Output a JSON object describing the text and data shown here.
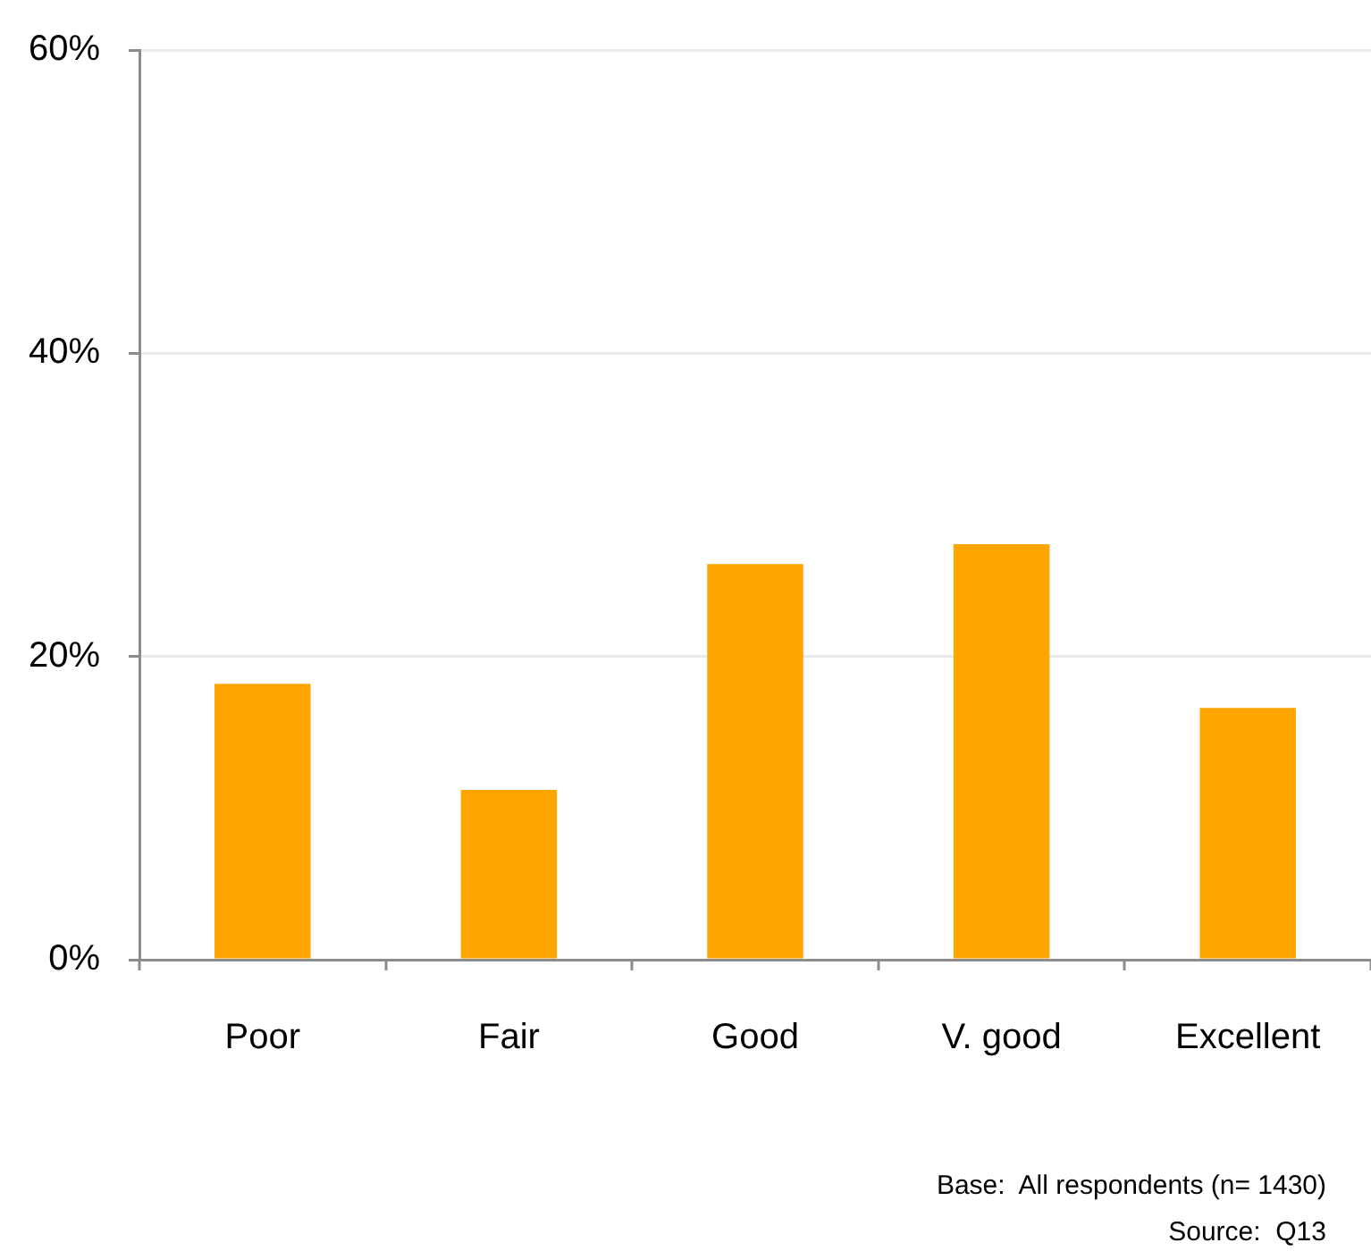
{
  "chart_data": {
    "type": "bar",
    "categories": [
      "Poor",
      "Fair",
      "Good",
      "V. good",
      "Excellent"
    ],
    "values": [
      18.2,
      11.2,
      26.1,
      27.4,
      16.6
    ],
    "color": "#ffa500",
    "ylim": [
      0,
      60
    ],
    "yticks": [
      {
        "value": 0,
        "label": "0%"
      },
      {
        "value": 20,
        "label": "20%"
      },
      {
        "value": 40,
        "label": "40%"
      },
      {
        "value": 60,
        "label": "60%"
      }
    ],
    "grid": "y",
    "annotations": [
      "Base:  All respondents (n= 1430)",
      "Source:  Q13"
    ]
  }
}
